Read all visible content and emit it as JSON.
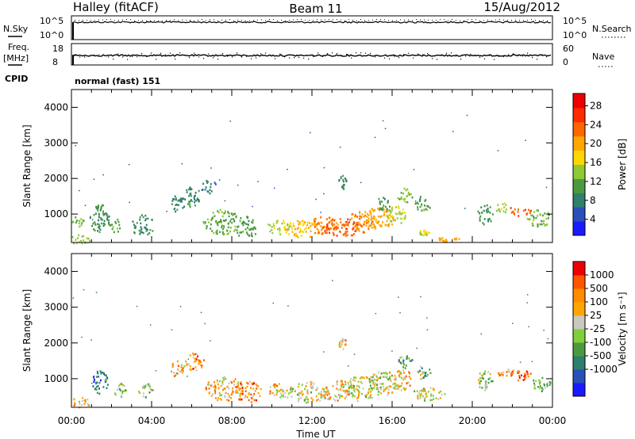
{
  "header": {
    "title": "Halley (fitACF)",
    "beam": "Beam 11",
    "date": "15/Aug/2012"
  },
  "top_panels": {
    "nsky_label": "N.Sky",
    "nsearch_label": "N.Search",
    "nsky_ticks": [
      "10^5",
      "10^0"
    ],
    "nsearch_ticks": [
      "10^5",
      "10^0"
    ],
    "freq_label_1": "Freq.",
    "freq_label_2": "[MHz]",
    "freq_ticks": [
      "18",
      "8"
    ],
    "nave_label": "Nave",
    "nave_ticks": [
      "60",
      "0"
    ],
    "cpid_label": "CPID",
    "cpid_value": "normal (fast) 151"
  },
  "chart_data": [
    {
      "type": "heatmap",
      "name": "power",
      "ylabel": "Slant Range [km]",
      "ylim": [
        200,
        4500
      ],
      "yticks": [
        "4000",
        "3000",
        "2000",
        "1000"
      ],
      "colorbar": {
        "label": "Power [dB]",
        "tick_labels": [
          "28",
          "24",
          "20",
          "16",
          "12",
          "8",
          "4"
        ],
        "colors": [
          "#1a1aff",
          "#2a4fb8",
          "#2e7f6e",
          "#4c9a40",
          "#8fc935",
          "#ffd700",
          "#ffa500",
          "#ff6600",
          "#ff2a00",
          "#ee0000"
        ]
      },
      "blobs": [
        {
          "t": 0.4,
          "r": 300,
          "dt": 0.5,
          "dr": 150,
          "v": 14
        },
        {
          "t": 0.3,
          "r": 800,
          "dt": 0.3,
          "dr": 150,
          "v": 12
        },
        {
          "t": 1.4,
          "r": 900,
          "dt": 0.5,
          "dr": 400,
          "v": 9
        },
        {
          "t": 2.2,
          "r": 700,
          "dt": 0.3,
          "dr": 200,
          "v": 10
        },
        {
          "t": 3.5,
          "r": 700,
          "dt": 0.6,
          "dr": 300,
          "v": 8
        },
        {
          "t": 5.3,
          "r": 1300,
          "dt": 0.4,
          "dr": 250,
          "v": 7
        },
        {
          "t": 6.0,
          "r": 1500,
          "dt": 0.4,
          "dr": 300,
          "v": 8
        },
        {
          "t": 6.8,
          "r": 1800,
          "dt": 0.4,
          "dr": 200,
          "v": 6
        },
        {
          "t": 7.5,
          "r": 800,
          "dt": 1.0,
          "dr": 350,
          "v": 11
        },
        {
          "t": 8.7,
          "r": 650,
          "dt": 0.6,
          "dr": 300,
          "v": 10
        },
        {
          "t": 10.3,
          "r": 650,
          "dt": 0.6,
          "dr": 200,
          "v": 14
        },
        {
          "t": 11.5,
          "r": 600,
          "dt": 1.0,
          "dr": 250,
          "v": 18
        },
        {
          "t": 12.5,
          "r": 700,
          "dt": 0.8,
          "dr": 250,
          "v": 22
        },
        {
          "t": 13.5,
          "r": 650,
          "dt": 1.0,
          "dr": 250,
          "v": 24
        },
        {
          "t": 14.5,
          "r": 800,
          "dt": 0.8,
          "dr": 300,
          "v": 22
        },
        {
          "t": 15.3,
          "r": 900,
          "dt": 0.8,
          "dr": 300,
          "v": 20
        },
        {
          "t": 16.2,
          "r": 1000,
          "dt": 0.6,
          "dr": 250,
          "v": 14
        },
        {
          "t": 13.5,
          "r": 1900,
          "dt": 0.2,
          "dr": 200,
          "v": 8
        },
        {
          "t": 15.5,
          "r": 1300,
          "dt": 0.4,
          "dr": 200,
          "v": 9
        },
        {
          "t": 16.6,
          "r": 1550,
          "dt": 0.4,
          "dr": 200,
          "v": 12
        },
        {
          "t": 17.5,
          "r": 1300,
          "dt": 0.4,
          "dr": 250,
          "v": 10
        },
        {
          "t": 18.8,
          "r": 300,
          "dt": 0.6,
          "dr": 80,
          "v": 20
        },
        {
          "t": 17.6,
          "r": 500,
          "dt": 0.3,
          "dr": 80,
          "v": 16
        },
        {
          "t": 20.6,
          "r": 1000,
          "dt": 0.4,
          "dr": 300,
          "v": 9
        },
        {
          "t": 21.5,
          "r": 1200,
          "dt": 0.4,
          "dr": 150,
          "v": 14
        },
        {
          "t": 22.3,
          "r": 1100,
          "dt": 0.6,
          "dr": 150,
          "v": 24
        },
        {
          "t": 23.3,
          "r": 900,
          "dt": 0.6,
          "dr": 250,
          "v": 12
        }
      ]
    },
    {
      "type": "heatmap",
      "name": "velocity",
      "ylabel": "Slant Range [km]",
      "ylim": [
        200,
        4500
      ],
      "yticks": [
        "4000",
        "3000",
        "2000",
        "1000"
      ],
      "colorbar": {
        "label": "Velocity [m s⁻¹]",
        "tick_labels": [
          "1000",
          "500",
          "100",
          "25",
          "-25",
          "-100",
          "-500",
          "-1000"
        ],
        "colors": [
          "#1a1aff",
          "#2a4fb8",
          "#2e7f6e",
          "#4c9a40",
          "#7fd03a",
          "#c9c9c0",
          "#ffa500",
          "#ff8c00",
          "#ff5500",
          "#ee0000"
        ]
      },
      "blobs": [
        {
          "t": 0.4,
          "r": 350,
          "dt": 0.5,
          "dr": 150,
          "v": 6
        },
        {
          "t": 1.4,
          "r": 900,
          "dt": 0.4,
          "dr": 350,
          "v": 2
        },
        {
          "t": 2.4,
          "r": 700,
          "dt": 0.3,
          "dr": 200,
          "v": 4
        },
        {
          "t": 3.7,
          "r": 700,
          "dt": 0.4,
          "dr": 200,
          "v": 4
        },
        {
          "t": 5.3,
          "r": 1300,
          "dt": 0.4,
          "dr": 250,
          "v": 6
        },
        {
          "t": 6.1,
          "r": 1500,
          "dt": 0.5,
          "dr": 250,
          "v": 7
        },
        {
          "t": 7.6,
          "r": 750,
          "dt": 1.0,
          "dr": 350,
          "v": 6
        },
        {
          "t": 8.8,
          "r": 650,
          "dt": 0.7,
          "dr": 300,
          "v": 7
        },
        {
          "t": 10.4,
          "r": 700,
          "dt": 0.6,
          "dr": 250,
          "v": 6
        },
        {
          "t": 11.8,
          "r": 650,
          "dt": 1.0,
          "dr": 300,
          "v": 5
        },
        {
          "t": 13.2,
          "r": 700,
          "dt": 0.8,
          "dr": 300,
          "v": 6
        },
        {
          "t": 14.4,
          "r": 750,
          "dt": 1.0,
          "dr": 350,
          "v": 5
        },
        {
          "t": 15.6,
          "r": 900,
          "dt": 0.8,
          "dr": 350,
          "v": 5
        },
        {
          "t": 16.4,
          "r": 1000,
          "dt": 0.6,
          "dr": 300,
          "v": 6
        },
        {
          "t": 17.8,
          "r": 600,
          "dt": 0.8,
          "dr": 200,
          "v": 5
        },
        {
          "t": 16.6,
          "r": 1500,
          "dt": 0.4,
          "dr": 200,
          "v": 3
        },
        {
          "t": 17.5,
          "r": 1200,
          "dt": 0.4,
          "dr": 200,
          "v": 4
        },
        {
          "t": 13.5,
          "r": 2000,
          "dt": 0.2,
          "dr": 150,
          "v": 6
        },
        {
          "t": 20.6,
          "r": 1000,
          "dt": 0.4,
          "dr": 300,
          "v": 4
        },
        {
          "t": 21.6,
          "r": 1200,
          "dt": 0.5,
          "dr": 150,
          "v": 7
        },
        {
          "t": 22.4,
          "r": 1100,
          "dt": 0.6,
          "dr": 150,
          "v": 8
        },
        {
          "t": 23.4,
          "r": 850,
          "dt": 0.5,
          "dr": 200,
          "v": 3
        }
      ]
    }
  ],
  "xaxis": {
    "label": "Time UT",
    "tick_labels": [
      "00:00",
      "04:00",
      "08:00",
      "12:00",
      "16:00",
      "20:00",
      "00:00"
    ],
    "range_hours": [
      0,
      24
    ]
  }
}
